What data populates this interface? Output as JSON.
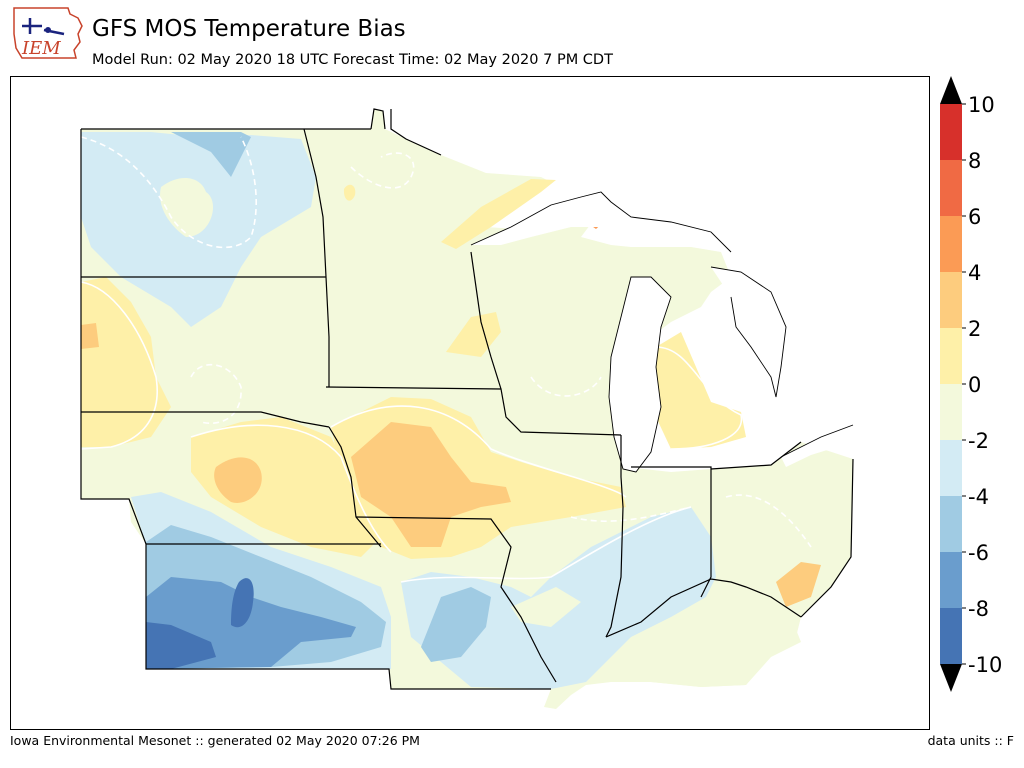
{
  "header": {
    "logo_text": "IEM",
    "title": "GFS MOS Temperature Bias",
    "subtitle": "Model Run: 02 May 2020 18 UTC Forecast Time: 02 May 2020 7 PM CDT"
  },
  "colorbar": {
    "ticks": [
      "10",
      "8",
      "6",
      "4",
      "2",
      "0",
      "-2",
      "-4",
      "-6",
      "-8",
      "-10"
    ],
    "bins": [
      {
        "range": "8 to 10",
        "color": "#d7302b"
      },
      {
        "range": "6 to 8",
        "color": "#f06a44"
      },
      {
        "range": "4 to 6",
        "color": "#fb9b55"
      },
      {
        "range": "2 to 4",
        "color": "#fdcc7e"
      },
      {
        "range": "0 to 2",
        "color": "#fef0a8"
      },
      {
        "range": "-2 to 0",
        "color": "#f3f9dc"
      },
      {
        "range": "-4 to -2",
        "color": "#d3ebf4"
      },
      {
        "range": "-6 to -4",
        "color": "#a0cbe3"
      },
      {
        "range": "-8 to -6",
        "color": "#6a9dcd"
      },
      {
        "range": "-10 to -8",
        "color": "#4574b4"
      }
    ],
    "overflow_color": "#000000",
    "underflow_color": "#000000"
  },
  "map": {
    "variable": "temperature bias",
    "units": "F",
    "background_color": "#f3f9dc",
    "lake_color": "#ffffff",
    "border_color": "#000000"
  },
  "footer": {
    "credit": "Iowa Environmental Mesonet :: generated 02 May 2020 07:26 PM",
    "units": "data units :: F"
  }
}
